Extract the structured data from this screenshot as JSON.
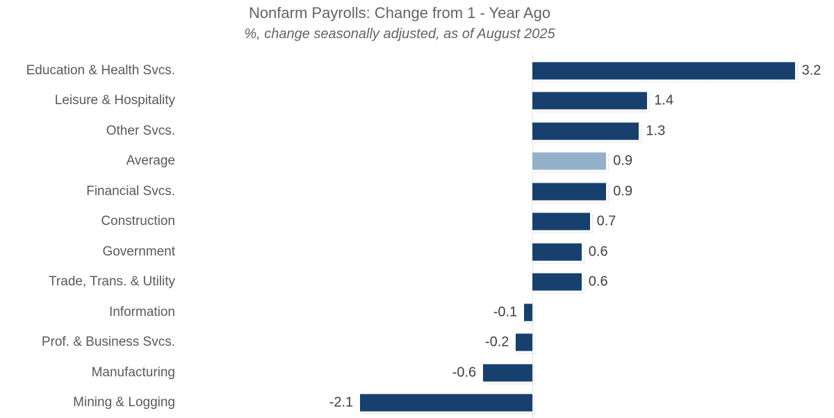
{
  "header": {
    "title": "Nonfarm Payrolls: Change from 1 - Year Ago",
    "subtitle": "%, change seasonally adjusted, as of August 2025"
  },
  "colors": {
    "bar": "#17406e",
    "highlight_bar": "#94b1c9",
    "zero_line": "#cccccc",
    "title_text": "#636363",
    "category_text": "#595959",
    "value_text": "#404040"
  },
  "chart_data": {
    "type": "bar",
    "orientation": "horizontal",
    "title": "Nonfarm Payrolls: Change from 1 - Year Ago",
    "subtitle": "%, change seasonally adjusted, as of August 2025",
    "xlabel": "",
    "ylabel": "",
    "categories": [
      "Education & Health Svcs.",
      "Leisure & Hospitality",
      "Other Svcs.",
      "Average",
      "Financial Svcs.",
      "Construction",
      "Government",
      "Trade, Trans. & Utility",
      "Information",
      "Prof. & Business Svcs.",
      "Manufacturing",
      "Mining & Logging"
    ],
    "values": [
      3.2,
      1.4,
      1.3,
      0.9,
      0.9,
      0.7,
      0.6,
      0.6,
      -0.1,
      -0.2,
      -0.6,
      -2.1
    ],
    "value_labels": [
      "3.2",
      "1.4",
      "1.3",
      "0.9",
      "0.9",
      "0.7",
      "0.6",
      "0.6",
      "-0.1",
      "-0.2",
      "-0.6",
      "-2.1"
    ],
    "highlight_category": "Average",
    "xlim": [
      -2.6,
      3.7
    ],
    "grid": false,
    "zero_baseline": true,
    "legend": null,
    "data_labels": "outside-end"
  }
}
